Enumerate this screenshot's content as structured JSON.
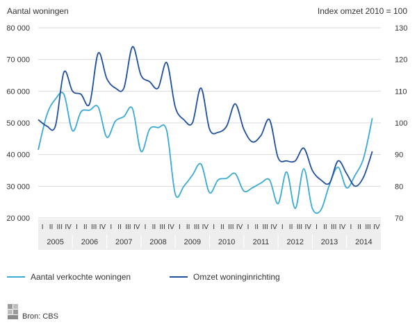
{
  "chart_data": {
    "type": "line",
    "title": "",
    "ylabel_left": "Aantal woningen",
    "ylabel_right": "Index omzet 2010 = 100",
    "ylim_left": [
      20000,
      80000
    ],
    "yticks_left": [
      "80 000",
      "70 000",
      "60 000",
      "50 000",
      "40 000",
      "30 000",
      "20 000"
    ],
    "ylim_right": [
      70,
      130
    ],
    "yticks_right": [
      "130",
      "120",
      "110",
      "100",
      "90",
      "80",
      "70"
    ],
    "quarter_labels": [
      "I",
      "II",
      "III",
      "IV"
    ],
    "years": [
      "2005",
      "2006",
      "2007",
      "2008",
      "2009",
      "2010",
      "2011",
      "2012",
      "2013",
      "2014"
    ],
    "grid": true,
    "legend_position": "bottom",
    "series": [
      {
        "name": "Aantal verkochte woningen",
        "axis": "left",
        "color": "#3aa9d4",
        "x": [
          2005.0,
          2005.25,
          2005.5,
          2005.75,
          2006.0,
          2006.25,
          2006.5,
          2006.75,
          2007.0,
          2007.25,
          2007.5,
          2007.75,
          2008.0,
          2008.25,
          2008.5,
          2008.75,
          2009.0,
          2009.25,
          2009.5,
          2009.75,
          2010.0,
          2010.25,
          2010.5,
          2010.75,
          2011.0,
          2011.25,
          2011.5,
          2011.75,
          2012.0,
          2012.25,
          2012.5,
          2012.75,
          2013.0,
          2013.25,
          2013.5,
          2013.75,
          2014.0,
          2014.25,
          2014.5,
          2014.75
        ],
        "values": [
          41500,
          52500,
          57500,
          59000,
          47500,
          53500,
          54000,
          55000,
          45500,
          50500,
          52000,
          54500,
          41000,
          48000,
          48500,
          47500,
          27500,
          30000,
          33500,
          37000,
          28000,
          32000,
          32500,
          34000,
          28500,
          29500,
          31000,
          32000,
          24500,
          34500,
          23000,
          35500,
          23000,
          22500,
          30500,
          36000,
          29500,
          33500,
          39000,
          51500
        ]
      },
      {
        "name": "Omzet woninginrichting",
        "axis": "right",
        "color": "#1f4e9e",
        "x": [
          2005.0,
          2005.25,
          2005.5,
          2005.75,
          2006.0,
          2006.25,
          2006.5,
          2006.75,
          2007.0,
          2007.25,
          2007.5,
          2007.75,
          2008.0,
          2008.25,
          2008.5,
          2008.75,
          2009.0,
          2009.25,
          2009.5,
          2009.75,
          2010.0,
          2010.25,
          2010.5,
          2010.75,
          2011.0,
          2011.25,
          2011.5,
          2011.75,
          2012.0,
          2012.25,
          2012.5,
          2012.75,
          2013.0,
          2013.25,
          2013.5,
          2013.75,
          2014.0,
          2014.25,
          2014.5,
          2014.75
        ],
        "values": [
          101,
          99,
          99,
          116,
          110,
          109,
          106,
          122,
          114,
          111,
          111,
          124,
          115,
          113,
          111,
          119,
          105,
          101,
          100,
          111,
          98,
          97,
          99,
          106,
          98,
          94,
          96,
          101,
          89,
          88,
          88,
          92,
          85,
          82,
          81,
          88,
          84,
          80,
          83,
          91
        ]
      }
    ]
  },
  "source": {
    "text": "Bron: CBS",
    "logo_lettering": "cbs"
  }
}
